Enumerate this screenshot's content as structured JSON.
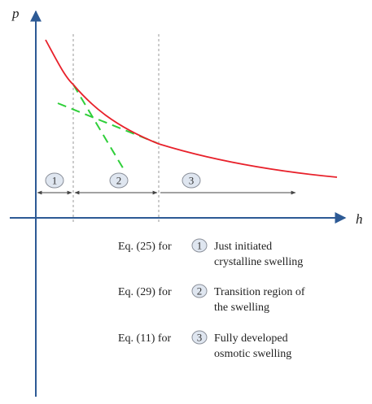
{
  "chart_data": {
    "type": "line",
    "title": "",
    "xlabel": "h",
    "ylabel": "p",
    "regions": [
      {
        "id": "1"
      },
      {
        "id": "2"
      },
      {
        "id": "3"
      }
    ],
    "legend": [
      {
        "prefix": "Eq. (25) for",
        "marker": "1",
        "lines": [
          "Just initiated",
          "crystalline swelling"
        ]
      },
      {
        "prefix": "Eq. (29) for",
        "marker": "2",
        "lines": [
          "Transition region of",
          "the swelling"
        ]
      },
      {
        "prefix": "Eq. (11) for",
        "marker": "3",
        "lines": [
          "Fully developed",
          "osmotic swelling"
        ]
      }
    ],
    "colors": {
      "curve": "#e8212b",
      "tangents": "#2fcf3a",
      "axes": "#2d5a95",
      "dividers": "#9a9a9a",
      "arrows": "#444444",
      "circle_fill": "#dfe6f0",
      "circle_stroke": "#8a8f99"
    }
  }
}
